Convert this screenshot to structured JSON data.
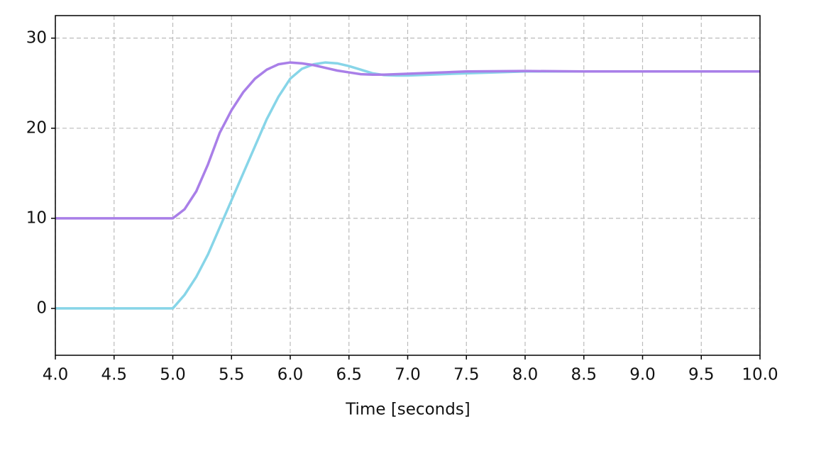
{
  "chart_data": {
    "type": "line",
    "x_label": "Time [seconds]",
    "x": [
      4.0,
      5.0,
      5.1,
      5.2,
      5.3,
      5.4,
      5.5,
      5.6,
      5.7,
      5.8,
      5.9,
      6.0,
      6.1,
      6.2,
      6.3,
      6.4,
      6.5,
      6.6,
      6.7,
      6.8,
      6.9,
      7.0,
      7.5,
      8.0,
      8.5,
      9.0,
      9.5,
      10.0
    ],
    "series": [
      {
        "color": "#a97fe8",
        "values": [
          10,
          10,
          11,
          13,
          16,
          19.5,
          22,
          24,
          25.5,
          26.5,
          27.1,
          27.3,
          27.2,
          27.0,
          26.7,
          26.4,
          26.2,
          26.0,
          25.95,
          25.95,
          26.0,
          26.05,
          26.3,
          26.35,
          26.3,
          26.3,
          26.3,
          26.3
        ]
      },
      {
        "color": "#87d5e8",
        "values": [
          0,
          0,
          1.5,
          3.5,
          6,
          9,
          12,
          15,
          18,
          21,
          23.5,
          25.5,
          26.6,
          27.1,
          27.3,
          27.2,
          26.9,
          26.5,
          26.1,
          25.9,
          25.85,
          25.85,
          26.1,
          26.3,
          26.3,
          26.3,
          26.3,
          26.3
        ]
      }
    ],
    "xlim": [
      4.0,
      10.0
    ],
    "xticks": [
      {
        "value": 4.0,
        "label": "4.0"
      },
      {
        "value": 4.5,
        "label": "4.5"
      },
      {
        "value": 5.0,
        "label": "5.0"
      },
      {
        "value": 5.5,
        "label": "5.5"
      },
      {
        "value": 6.0,
        "label": "6.0"
      },
      {
        "value": 6.5,
        "label": "6.5"
      },
      {
        "value": 7.0,
        "label": "7.0"
      },
      {
        "value": 7.5,
        "label": "7.5"
      },
      {
        "value": 8.0,
        "label": "8.0"
      },
      {
        "value": 8.5,
        "label": "8.5"
      },
      {
        "value": 9.0,
        "label": "9.0"
      },
      {
        "value": 9.5,
        "label": "9.5"
      },
      {
        "value": 10.0,
        "label": "10.0"
      }
    ],
    "ylim": [
      -5.2,
      32.5
    ],
    "yticks": [
      0,
      10,
      20,
      30
    ],
    "grid": true
  }
}
